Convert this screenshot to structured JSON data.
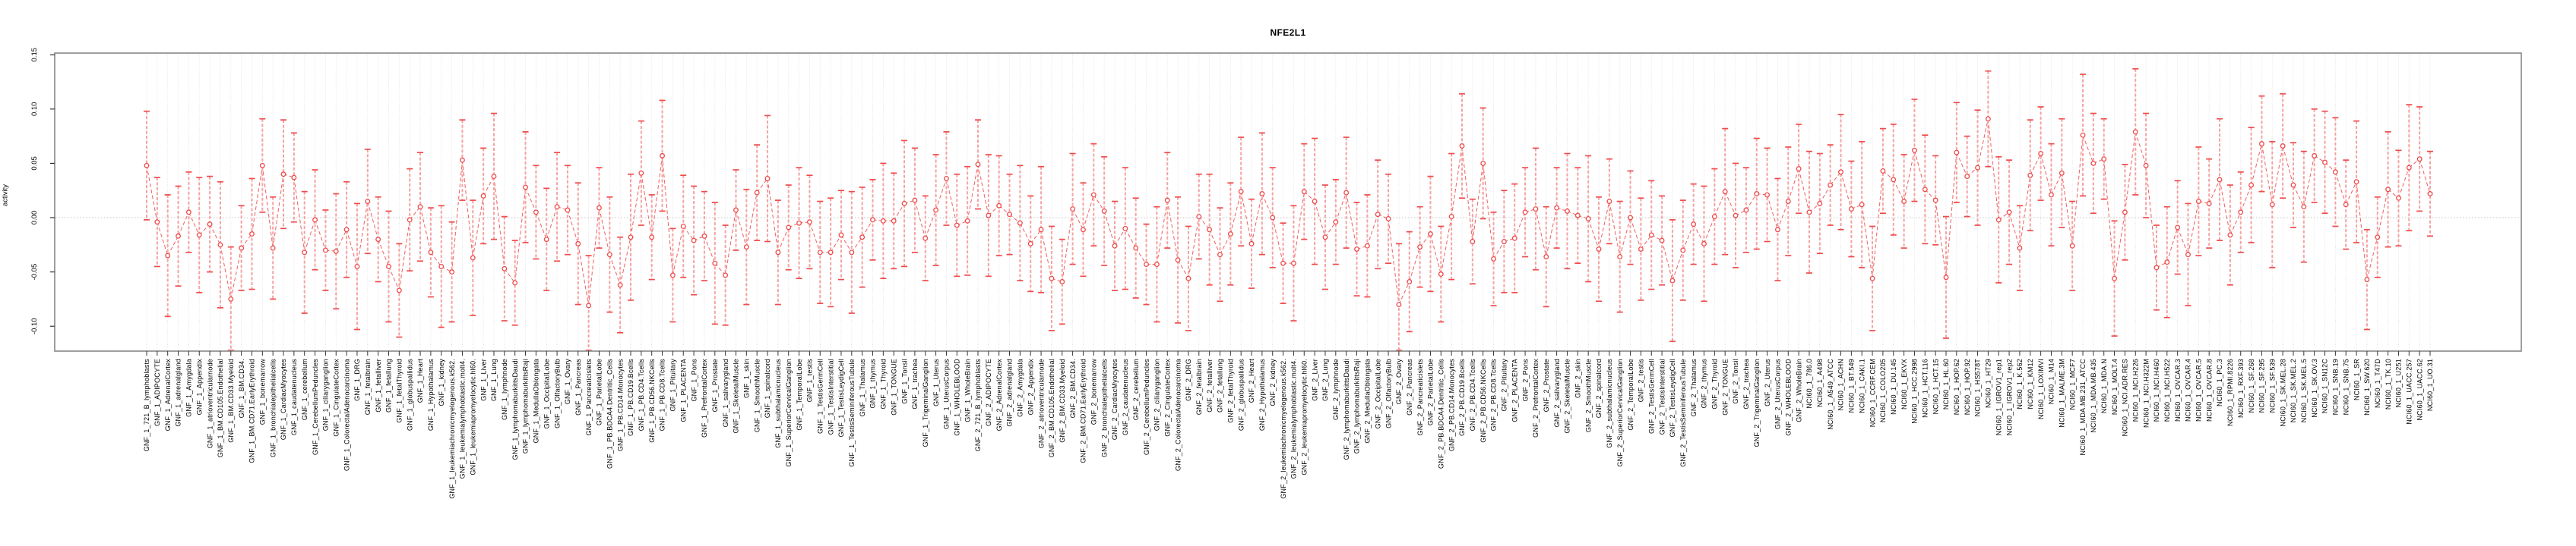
{
  "window": {
    "title": "NFE2L1 activity plot"
  },
  "chart_data": {
    "type": "line",
    "subtype": "error-bar-point-plot",
    "title": "NFE2L1",
    "xlabel": "",
    "ylabel": "activity",
    "ylim": [
      -0.123,
      0.15
    ],
    "yticks": [
      0.15,
      0.1,
      0.05,
      0.0,
      -0.05,
      -0.1
    ],
    "ytick_labels": [
      "0.15",
      "0.10",
      "0.05",
      "0.00",
      "-0.05",
      "-0.10"
    ],
    "grid": "vertical-dotted-per-sample",
    "zero_line": true,
    "legend": "none",
    "colors": {
      "point": "#ef4b4b",
      "cap": "#ef4b4b",
      "whisker": "#f5a3a3",
      "connector": "#f06060",
      "gridline": "#d9d9d9",
      "zero_line": "#c4c4c4",
      "box": "#878787",
      "tick": "#333333",
      "text": "#000000"
    },
    "categories": [
      "GNF_1_721_B_lymphoblasts",
      "GNF_1_ADIPOCYTE",
      "GNF_1_AdrenalCortex",
      "GNF_1_adrenalgland",
      "GNF_1_Amygdala",
      "GNF_1_Appendix",
      "GNF_1_atrioventricularnode",
      "GNF_1_BM.CD105.Endothelial",
      "GNF_1_BM.CD33.Myeloid",
      "GNF_1_BM.CD34.",
      "GNF_1_BM.CD71.EarlyErythroid",
      "GNF_1_bonemarrow",
      "GNF_1_bronchialepithelialcells",
      "GNF_1_CardiacMyocytes",
      "GNF_1_caudatenucleus",
      "GNF_1_cerebellum",
      "GNF_1_CerebellumPeduncles",
      "GNF_1_ciliaryganglion",
      "GNF_1_CingulateCortex",
      "GNF_1_ColorectalAdenocarcinoma",
      "GNF_1_DRG",
      "GNF_1_fetalbrain",
      "GNF_1_fetalliver",
      "GNF_1_fetallung",
      "GNF_1_fetalThyroid",
      "GNF_1_globuspallidus",
      "GNF_1_Heart",
      "GNF_1_Hypothalamus",
      "GNF_1_kidney",
      "GNF_1_leukemiachronicmyelogenous.k562.",
      "GNF_1_leukemialymphoblastic.molt4.",
      "GNF_1_leukemiapromyelocytic.hl60.",
      "GNF_1_Liver",
      "GNF_1_Lung",
      "GNF_1_lymphnode",
      "GNF_1_lymphomaburkittsDaudi",
      "GNF_1_lymphomaburkittsRaji",
      "GNF_1_MedullaOblongata",
      "GNF_1_OccipitalLobe",
      "GNF_1_OlfactoryBulb",
      "GNF_1_Ovary",
      "GNF_1_Pancreas",
      "GNF_1_Pancreaticislets",
      "GNF_1_ParietalLobe",
      "GNF_1_PB.BDCA4.Dentritic_Cells",
      "GNF_1_PB.CD14.Monocytes",
      "GNF_1_PB.CD19.Bcells",
      "GNF_1_PB.CD4.Tcells",
      "GNF_1_PB.CD56.NKCells",
      "GNF_1_PB.CD8.Tcells",
      "GNF_1_Pituitary",
      "GNF_1_PLACENTA",
      "GNF_1_Pons",
      "GNF_1_PrefrontalCortex",
      "GNF_1_Prostate",
      "GNF_1_salivarygland",
      "GNF_1_SkeletalMuscle",
      "GNF_1_skin",
      "GNF_1_SmoothMuscle",
      "GNF_1_spinalcord",
      "GNF_1_subthalamicnucleus",
      "GNF_1_SuperiorCervicalGanglion",
      "GNF_1_TemporalLobe",
      "GNF_1_testis",
      "GNF_1_TestisGermCell",
      "GNF_1_TestisInterstitial",
      "GNF_1_TestisLeydigCell",
      "GNF_1_TestisSeminiferousTubule",
      "GNF_1_Thalamus",
      "GNF_1_thymus",
      "GNF_1_Thyroid",
      "GNF_1_TONGUE",
      "GNF_1_Tonsil",
      "GNF_1_trachea",
      "GNF_1_TrigeminalGanglion",
      "GNF_1_Uterus",
      "GNF_1_UterusCorpus",
      "GNF_1_WHOLEBLOOD",
      "GNF_1_WholeBrain",
      "GNF_2_721_B_lymphoblasts",
      "GNF_2_ADIPOCYTE",
      "GNF_2_AdrenalCortex",
      "GNF_2_adrenalgland",
      "GNF_2_Amygdala",
      "GNF_2_Appendix",
      "GNF_2_atrioventricularnode",
      "GNF_2_BM.CD105.Endothelial",
      "GNF_2_BM.CD33.Myeloid",
      "GNF_2_BM.CD34.",
      "GNF_2_BM.CD71.EarlyErythroid",
      "GNF_2_bonemarrow",
      "GNF_2_bronchialepithelialcells",
      "GNF_2_CardiacMyocytes",
      "GNF_2_caudatenucleus",
      "GNF_2_cerebellum",
      "GNF_2_CerebellumPeduncles",
      "GNF_2_ciliaryganglion",
      "GNF_2_CingulateCortex",
      "GNF_2_ColorectalAdenocarcinoma",
      "GNF_2_DRG",
      "GNF_2_fetalbrain",
      "GNF_2_fetalliver",
      "GNF_2_fetallung",
      "GNF_2_fetalThyroid",
      "GNF_2_globuspallidus",
      "GNF_2_Heart",
      "GNF_2_Hypothalamus",
      "GNF_2_kidney",
      "GNF_2_leukemiachronicmyelogenous.k562.",
      "GNF_2_leukemialymphoblastic.molt4.",
      "GNF_2_leukemiapromyelocytic.hl60.",
      "GNF_2_Liver",
      "GNF_2_Lung",
      "GNF_2_lymphnode",
      "GNF_2_lymphomaburkittsDaudi",
      "GNF_2_lymphomaburkittsRaji",
      "GNF_2_MedullaOblongata",
      "GNF_2_OccipitalLobe",
      "GNF_2_OlfactoryBulb",
      "GNF_2_Ovary",
      "GNF_2_Pancreas",
      "GNF_2_Pancreaticislets",
      "GNF_2_ParietalLobe",
      "GNF_2_PB.BDCA4.Dentritic_Cells",
      "GNF_2_PB.CD14.Monocytes",
      "GNF_2_PB.CD19.Bcells",
      "GNF_2_PB.CD4.Tcells",
      "GNF_2_PB.CD56.NKCells",
      "GNF_2_PB.CD8.Tcells",
      "GNF_2_Pituitary",
      "GNF_2_PLACENTA",
      "GNF_2_Pons",
      "GNF_2_PrefrontalCortex",
      "GNF_2_Prostate",
      "GNF_2_salivarygland",
      "GNF_2_SkeletalMuscle",
      "GNF_2_skin",
      "GNF_2_SmoothMuscle",
      "GNF_2_spinalcord",
      "GNF_2_subthalamicnucleus",
      "GNF_2_SuperiorCervicalGanglion",
      "GNF_2_TemporalLobe",
      "GNF_2_testis",
      "GNF_2_TestisGermCell",
      "GNF_2_TestisInterstitial",
      "GNF_2_TestisLeydigCell",
      "GNF_2_TestisSeminiferousTubule",
      "GNF_2_Thalamus",
      "GNF_2_thymus",
      "GNF_2_Thyroid",
      "GNF_2_TONGUE",
      "GNF_2_Tonsil",
      "GNF_2_trachea",
      "GNF_2_TrigeminalGanglion",
      "GNF_2_Uterus",
      "GNF_2_UterusCorpus",
      "GNF_2_WHOLEBLOOD",
      "GNF_2_WholeBrain",
      "NCI60_1_786.0",
      "NCI60_1_A498",
      "NCI60_1_A549_ATCC",
      "NCI60_1_ACHN",
      "NCI60_1_BT.549",
      "NCI60_1_CAKI.1",
      "NCI60_1_CCRF.CEM",
      "NCI60_1_COLO205",
      "NCI60_1_DU.145",
      "NCI60_1_EKVX",
      "NCI60_1_HCC.2998",
      "NCI60_1_HCT.116",
      "NCI60_1_HCT.15",
      "NCI60_1_HL.60",
      "NCI60_1_HOP.62",
      "NCI60_1_HOP.92",
      "NCI60_1_HS578T",
      "NCI60_1_HT29",
      "NCI60_1_IGROV1_rep1",
      "NCI60_1_IGROV1_rep2",
      "NCI60_1_K.562",
      "NCI60_1_KM12",
      "NCI60_1_LOXIMVI",
      "NCI60_1_M14",
      "NCI60_1_MALME.3M",
      "NCI60_1_MCF7",
      "NCI60_1_MDA.MB.231_ATCC",
      "NCI60_1_MDA.MB.435",
      "NCI60_1_MDA.N",
      "NCI60_1_MOLT.4",
      "NCI60_1_NCI.ADR.RES",
      "NCI60_1_NCI.H226",
      "NCI60_1_NCI.H322M",
      "NCI60_1_NCI.H460",
      "NCI60_1_NCI.H522",
      "NCI60_1_OVCAR.3",
      "NCI60_1_OVCAR.4",
      "NCI60_1_OVCAR.5",
      "NCI60_1_OVCAR.8",
      "NCI60_1_PC.3",
      "NCI60_1_RPMI.8226",
      "NCI60_1_RXF.393",
      "NCI60_1_SF.268",
      "NCI60_1_SF.295",
      "NCI60_1_SF.539",
      "NCI60_1_SK.MEL.28",
      "NCI60_1_SK.MEL.2",
      "NCI60_1_SK.MEL.5",
      "NCI60_1_SK.OV.3",
      "NCI60_1_SN12C",
      "NCI60_1_SNB.19",
      "NCI60_1_SNB.75",
      "NCI60_1_SR",
      "NCI60_1_SW.620",
      "NCI60_1_T47D",
      "NCI60_1_TK.10",
      "NCI60_1_U251",
      "NCI60_1_UACC.257",
      "NCI60_1_UACC.62",
      "NCI60_1_UO.31"
    ],
    "series": [
      {
        "name": "activity",
        "values": [
          0.048,
          -0.004,
          -0.035,
          -0.017,
          0.005,
          -0.016,
          -0.006,
          -0.025,
          -0.075,
          -0.028,
          -0.015,
          0.048,
          -0.028,
          0.04,
          0.037,
          -0.032,
          -0.002,
          -0.03,
          -0.031,
          -0.011,
          -0.045,
          0.015,
          -0.02,
          -0.045,
          -0.067,
          -0.002,
          0.01,
          -0.032,
          -0.045,
          -0.05,
          0.053,
          -0.037,
          0.02,
          0.038,
          -0.047,
          -0.06,
          0.028,
          0.005,
          -0.02,
          0.01,
          0.007,
          -0.024,
          -0.081,
          0.009,
          -0.034,
          -0.062,
          -0.018,
          0.041,
          -0.018,
          0.057,
          -0.053,
          -0.008,
          -0.021,
          -0.017,
          -0.042,
          -0.053,
          0.007,
          -0.027,
          0.023,
          0.036,
          -0.032,
          -0.009,
          -0.005,
          -0.004,
          -0.032,
          -0.032,
          -0.016,
          -0.032,
          -0.018,
          -0.002,
          -0.003,
          -0.003,
          0.013,
          0.016,
          -0.019,
          0.007,
          0.036,
          -0.007,
          -0.003,
          0.049,
          0.002,
          0.011,
          0.003,
          -0.005,
          -0.024,
          -0.011,
          -0.056,
          -0.059,
          0.008,
          -0.011,
          0.021,
          0.006,
          -0.026,
          -0.01,
          -0.028,
          -0.043,
          -0.043,
          0.016,
          -0.039,
          -0.056,
          0.001,
          -0.011,
          -0.034,
          -0.015,
          0.024,
          -0.024,
          0.022,
          0.0,
          -0.042,
          -0.042,
          0.024,
          0.015,
          -0.018,
          -0.004,
          0.023,
          -0.029,
          -0.026,
          0.003,
          -0.001,
          -0.08,
          -0.059,
          -0.027,
          -0.015,
          -0.052,
          0.001,
          0.066,
          -0.022,
          0.05,
          -0.038,
          -0.022,
          -0.019,
          0.005,
          0.008,
          -0.036,
          0.009,
          0.006,
          0.002,
          -0.001,
          -0.029,
          0.015,
          -0.036,
          0.0,
          -0.029,
          -0.016,
          -0.021,
          -0.058,
          -0.03,
          -0.006,
          -0.024,
          0.001,
          0.024,
          0.002,
          0.007,
          0.022,
          0.021,
          -0.011,
          0.015,
          0.045,
          0.005,
          0.013,
          0.03,
          0.042,
          0.008,
          0.012,
          -0.056,
          0.043,
          0.035,
          0.015,
          0.062,
          0.026,
          0.016,
          -0.055,
          0.06,
          0.038,
          0.046,
          0.091,
          -0.002,
          0.005,
          -0.028,
          0.039,
          0.059,
          0.021,
          0.041,
          -0.026,
          0.076,
          0.05,
          0.054,
          -0.056,
          0.005,
          0.079,
          0.048,
          -0.046,
          -0.041,
          -0.009,
          -0.034,
          0.015,
          0.013,
          0.035,
          -0.016,
          0.005,
          0.03,
          0.068,
          0.012,
          0.066,
          0.03,
          0.01,
          0.057,
          0.051,
          0.042,
          0.012,
          0.033,
          -0.057,
          -0.018,
          0.026,
          0.018,
          0.046,
          0.054,
          0.022
        ],
        "ci_halfwidth": [
          0.05,
          0.041,
          0.056,
          0.046,
          0.037,
          0.053,
          0.044,
          0.058,
          0.048,
          0.039,
          0.051,
          0.043,
          0.047,
          0.05,
          0.041,
          0.056,
          0.046,
          0.037,
          0.053,
          0.044,
          0.058,
          0.048,
          0.039,
          0.051,
          0.043,
          0.047,
          0.05,
          0.041,
          0.056,
          0.046,
          0.037,
          0.053,
          0.044,
          0.058,
          0.048,
          0.039,
          0.051,
          0.043,
          0.047,
          0.05,
          0.041,
          0.056,
          0.046,
          0.037,
          0.053,
          0.044,
          0.058,
          0.048,
          0.039,
          0.051,
          0.043,
          0.047,
          0.05,
          0.041,
          0.056,
          0.046,
          0.037,
          0.053,
          0.044,
          0.058,
          0.048,
          0.039,
          0.051,
          0.043,
          0.047,
          0.05,
          0.041,
          0.056,
          0.046,
          0.037,
          0.053,
          0.044,
          0.058,
          0.048,
          0.039,
          0.051,
          0.043,
          0.047,
          0.05,
          0.041,
          0.056,
          0.046,
          0.037,
          0.053,
          0.044,
          0.058,
          0.048,
          0.039,
          0.051,
          0.043,
          0.047,
          0.05,
          0.041,
          0.056,
          0.046,
          0.037,
          0.053,
          0.044,
          0.058,
          0.048,
          0.039,
          0.051,
          0.043,
          0.047,
          0.05,
          0.041,
          0.056,
          0.046,
          0.037,
          0.053,
          0.044,
          0.058,
          0.048,
          0.039,
          0.051,
          0.043,
          0.047,
          0.05,
          0.041,
          0.056,
          0.046,
          0.037,
          0.053,
          0.044,
          0.058,
          0.048,
          0.039,
          0.051,
          0.043,
          0.047,
          0.05,
          0.041,
          0.056,
          0.046,
          0.037,
          0.053,
          0.044,
          0.058,
          0.048,
          0.039,
          0.051,
          0.043,
          0.047,
          0.05,
          0.041,
          0.056,
          0.046,
          0.037,
          0.053,
          0.044,
          0.058,
          0.048,
          0.039,
          0.051,
          0.043,
          0.047,
          0.05,
          0.041,
          0.056,
          0.046,
          0.037,
          0.053,
          0.044,
          0.058,
          0.048,
          0.039,
          0.051,
          0.043,
          0.047,
          0.05,
          0.041,
          0.056,
          0.046,
          0.037,
          0.053,
          0.044,
          0.058,
          0.048,
          0.039,
          0.051,
          0.043,
          0.047,
          0.05,
          0.041,
          0.056,
          0.046,
          0.037,
          0.053,
          0.044,
          0.058,
          0.048,
          0.039,
          0.051,
          0.043,
          0.047,
          0.05,
          0.041,
          0.056,
          0.046,
          0.037,
          0.053,
          0.044,
          0.058,
          0.048,
          0.039,
          0.051,
          0.043,
          0.047,
          0.05,
          0.041,
          0.056,
          0.046,
          0.037,
          0.053,
          0.044,
          0.058,
          0.048,
          0.039
        ]
      }
    ]
  }
}
